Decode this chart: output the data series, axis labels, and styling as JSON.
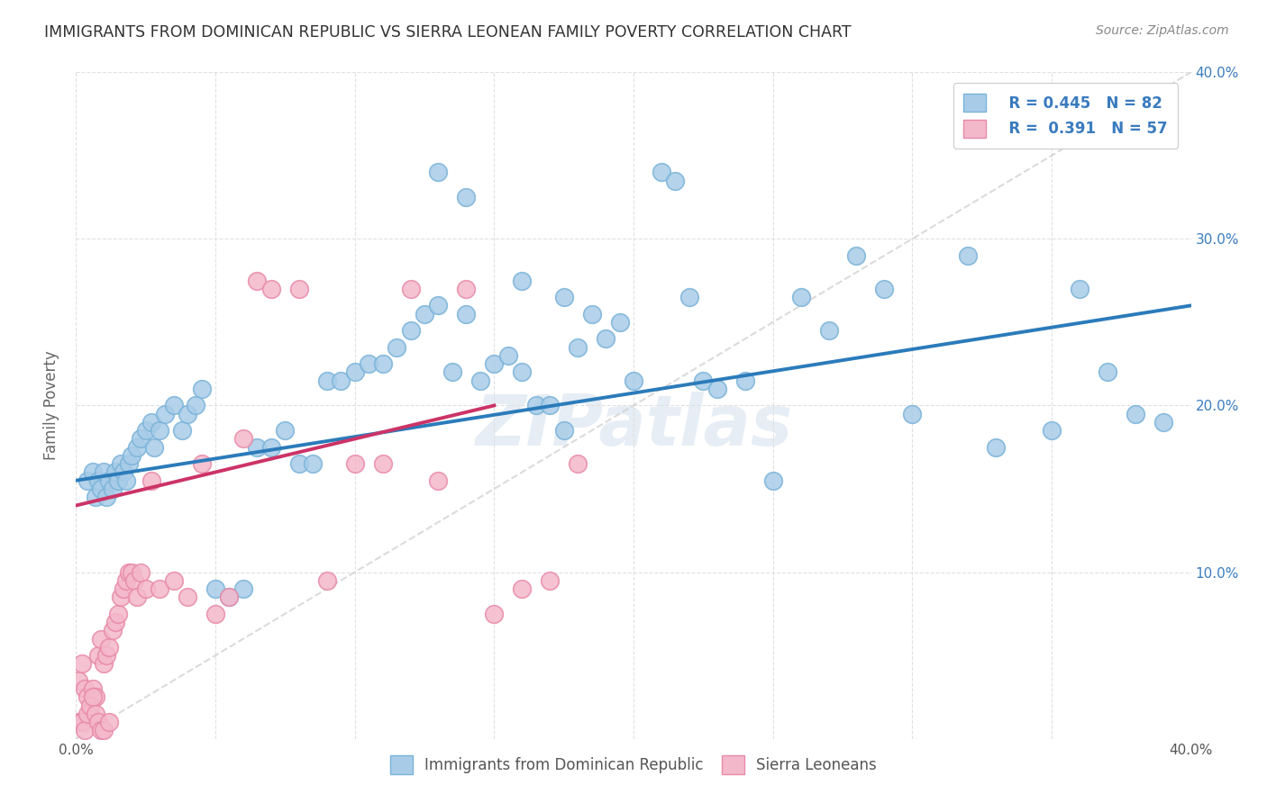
{
  "title": "IMMIGRANTS FROM DOMINICAN REPUBLIC VS SIERRA LEONEAN FAMILY POVERTY CORRELATION CHART",
  "source": "Source: ZipAtlas.com",
  "ylabel": "Family Poverty",
  "xlim": [
    0.0,
    0.4
  ],
  "ylim": [
    0.0,
    0.4
  ],
  "blue_color": "#a8cce8",
  "blue_edge_color": "#7ab3d9",
  "pink_color": "#f4b8cb",
  "pink_edge_color": "#e88aa8",
  "blue_line_color": "#2b7bba",
  "pink_line_color": "#cc3366",
  "diag_line_color": "#cccccc",
  "legend_label1": "Immigrants from Dominican Republic",
  "legend_label2": "Sierra Leoneans",
  "watermark": "ZIPatlas",
  "blue_scatter_x": [
    0.004,
    0.006,
    0.007,
    0.008,
    0.009,
    0.01,
    0.011,
    0.012,
    0.013,
    0.014,
    0.015,
    0.016,
    0.017,
    0.018,
    0.019,
    0.02,
    0.022,
    0.023,
    0.025,
    0.027,
    0.028,
    0.03,
    0.032,
    0.035,
    0.038,
    0.04,
    0.043,
    0.045,
    0.05,
    0.055,
    0.06,
    0.065,
    0.07,
    0.075,
    0.08,
    0.085,
    0.09,
    0.095,
    0.1,
    0.105,
    0.11,
    0.115,
    0.12,
    0.125,
    0.13,
    0.135,
    0.14,
    0.145,
    0.15,
    0.155,
    0.16,
    0.165,
    0.17,
    0.175,
    0.18,
    0.185,
    0.19,
    0.2,
    0.21,
    0.215,
    0.22,
    0.225,
    0.23,
    0.24,
    0.25,
    0.26,
    0.27,
    0.28,
    0.29,
    0.3,
    0.32,
    0.33,
    0.35,
    0.36,
    0.37,
    0.38,
    0.39,
    0.13,
    0.14,
    0.16,
    0.175,
    0.195
  ],
  "blue_scatter_y": [
    0.155,
    0.16,
    0.145,
    0.155,
    0.15,
    0.16,
    0.145,
    0.155,
    0.15,
    0.16,
    0.155,
    0.165,
    0.16,
    0.155,
    0.165,
    0.17,
    0.175,
    0.18,
    0.185,
    0.19,
    0.175,
    0.185,
    0.195,
    0.2,
    0.185,
    0.195,
    0.2,
    0.21,
    0.09,
    0.085,
    0.09,
    0.175,
    0.175,
    0.185,
    0.165,
    0.165,
    0.215,
    0.215,
    0.22,
    0.225,
    0.225,
    0.235,
    0.245,
    0.255,
    0.26,
    0.22,
    0.255,
    0.215,
    0.225,
    0.23,
    0.22,
    0.2,
    0.2,
    0.185,
    0.235,
    0.255,
    0.24,
    0.215,
    0.34,
    0.335,
    0.265,
    0.215,
    0.21,
    0.215,
    0.155,
    0.265,
    0.245,
    0.29,
    0.27,
    0.195,
    0.29,
    0.175,
    0.185,
    0.27,
    0.22,
    0.195,
    0.19,
    0.34,
    0.325,
    0.275,
    0.265,
    0.25
  ],
  "pink_scatter_x": [
    0.001,
    0.002,
    0.003,
    0.004,
    0.005,
    0.006,
    0.007,
    0.008,
    0.009,
    0.01,
    0.011,
    0.012,
    0.013,
    0.014,
    0.015,
    0.016,
    0.017,
    0.018,
    0.019,
    0.02,
    0.021,
    0.022,
    0.023,
    0.025,
    0.027,
    0.03,
    0.035,
    0.04,
    0.045,
    0.05,
    0.055,
    0.06,
    0.065,
    0.07,
    0.08,
    0.09,
    0.1,
    0.11,
    0.12,
    0.13,
    0.14,
    0.15,
    0.16,
    0.17,
    0.18,
    0.001,
    0.002,
    0.003,
    0.004,
    0.005,
    0.006,
    0.007,
    0.008,
    0.009,
    0.01,
    0.012
  ],
  "pink_scatter_y": [
    0.035,
    0.045,
    0.03,
    0.025,
    0.015,
    0.03,
    0.025,
    0.05,
    0.06,
    0.045,
    0.05,
    0.055,
    0.065,
    0.07,
    0.075,
    0.085,
    0.09,
    0.095,
    0.1,
    0.1,
    0.095,
    0.085,
    0.1,
    0.09,
    0.155,
    0.09,
    0.095,
    0.085,
    0.165,
    0.075,
    0.085,
    0.18,
    0.275,
    0.27,
    0.27,
    0.095,
    0.165,
    0.165,
    0.27,
    0.155,
    0.27,
    0.075,
    0.09,
    0.095,
    0.165,
    0.01,
    0.01,
    0.005,
    0.015,
    0.02,
    0.025,
    0.015,
    0.01,
    0.005,
    0.005,
    0.01
  ],
  "blue_trend_x": [
    0.0,
    0.4
  ],
  "blue_trend_y": [
    0.155,
    0.26
  ],
  "pink_trend_x": [
    0.0,
    0.15
  ],
  "pink_trend_y": [
    0.14,
    0.2
  ],
  "diag_trend_x": [
    0.0,
    0.4
  ],
  "diag_trend_y": [
    0.0,
    0.4
  ],
  "background_color": "#ffffff",
  "grid_color": "#e0e0e0",
  "title_color": "#333333",
  "source_color": "#888888"
}
